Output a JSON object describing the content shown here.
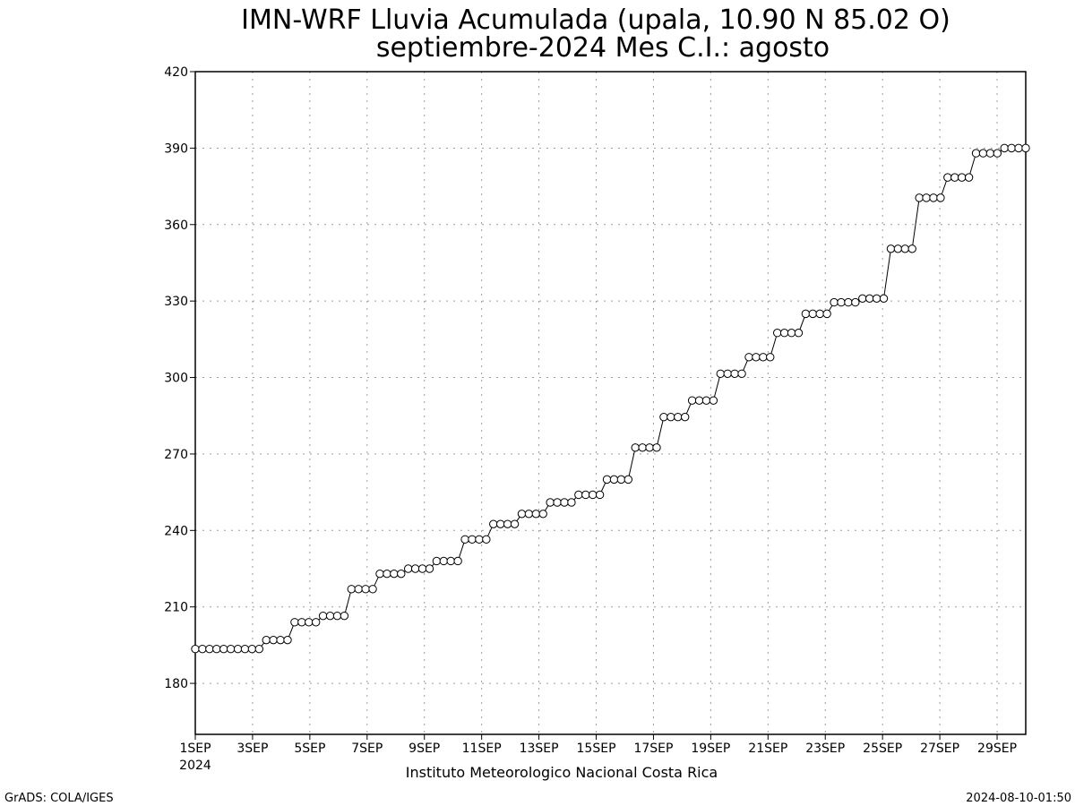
{
  "chart_data": {
    "type": "line",
    "title_line1": "IMN-WRF  Lluvia Acumulada (upala, 10.90  N 85.02  O)",
    "title_line2": "septiembre-2024 Mes C.I.: agosto",
    "ylim": [
      160,
      420
    ],
    "yticks": [
      180,
      210,
      240,
      270,
      300,
      330,
      360,
      390,
      420
    ],
    "xlim": [
      1,
      30
    ],
    "xticks": [
      {
        "day": 1,
        "label": "1SEP"
      },
      {
        "day": 3,
        "label": "3SEP"
      },
      {
        "day": 5,
        "label": "5SEP"
      },
      {
        "day": 7,
        "label": "7SEP"
      },
      {
        "day": 9,
        "label": "9SEP"
      },
      {
        "day": 11,
        "label": "11SEP"
      },
      {
        "day": 13,
        "label": "13SEP"
      },
      {
        "day": 15,
        "label": "15SEP"
      },
      {
        "day": 17,
        "label": "17SEP"
      },
      {
        "day": 19,
        "label": "19SEP"
      },
      {
        "day": 21,
        "label": "21SEP"
      },
      {
        "day": 23,
        "label": "23SEP"
      },
      {
        "day": 25,
        "label": "25SEP"
      },
      {
        "day": 27,
        "label": "27SEP"
      },
      {
        "day": 29,
        "label": "29SEP"
      }
    ],
    "year_label": "2024",
    "grid": true,
    "marker": "open-circle",
    "series": [
      {
        "values": [
          193.5,
          193.5,
          193.5,
          193.5,
          193.5,
          193.5,
          193.5,
          193.5,
          193.5,
          193.5,
          197,
          197,
          197,
          197,
          204,
          204,
          204,
          204,
          206.5,
          206.5,
          206.5,
          206.5,
          217,
          217,
          217,
          217,
          223,
          223,
          223,
          223,
          225,
          225,
          225,
          225,
          228,
          228,
          228,
          228,
          236.5,
          236.5,
          236.5,
          236.5,
          242.5,
          242.5,
          242.5,
          242.5,
          246.5,
          246.5,
          246.5,
          246.5,
          251,
          251,
          251,
          251,
          254,
          254,
          254,
          254,
          260,
          260,
          260,
          260,
          272.5,
          272.5,
          272.5,
          272.5,
          284.5,
          284.5,
          284.5,
          284.5,
          291,
          291,
          291,
          291,
          301.5,
          301.5,
          301.5,
          301.5,
          308,
          308,
          308,
          308,
          317.5,
          317.5,
          317.5,
          317.5,
          325,
          325,
          325,
          325,
          329.5,
          329.5,
          329.5,
          329.5,
          331,
          331,
          331,
          331,
          350.5,
          350.5,
          350.5,
          350.5,
          370.5,
          370.5,
          370.5,
          370.5,
          378.5,
          378.5,
          378.5,
          378.5,
          388,
          388,
          388,
          388,
          390,
          390,
          390,
          390
        ]
      }
    ]
  },
  "footer": {
    "institution": "Instituto Meteorologico Nacional Costa Rica",
    "software": "GrADS: COLA/IGES",
    "timestamp": "2024-08-10-01:50"
  }
}
